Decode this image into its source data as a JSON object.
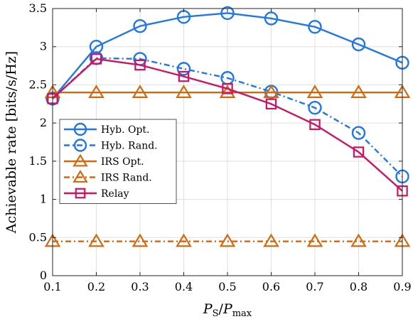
{
  "chart_data": {
    "type": "line",
    "xlabel": "P_S/P_max",
    "xlabel_main": "P",
    "xlabel_sub1": "S",
    "xlabel_slash": "/",
    "xlabel_main2": "P",
    "xlabel_sub2": "max",
    "ylabel": "Achievable rate [bits/s/Hz]",
    "xlim": [
      0.1,
      0.9
    ],
    "ylim": [
      0,
      3.5
    ],
    "xticks": [
      "0.1",
      "0.2",
      "0.3",
      "0.4",
      "0.5",
      "0.6",
      "0.7",
      "0.8",
      "0.9"
    ],
    "yticks": [
      "0",
      "0.5",
      "1",
      "1.5",
      "2",
      "2.5",
      "3",
      "3.5"
    ],
    "grid": true,
    "legend_position": "left",
    "x": [
      0.1,
      0.2,
      0.3,
      0.4,
      0.5,
      0.6,
      0.7,
      0.8,
      0.9
    ],
    "series": [
      {
        "name": "Hyb. Opt.",
        "color": "#1f77e8",
        "marker": "circle",
        "dash": "solid",
        "values": [
          2.32,
          3.0,
          3.27,
          3.39,
          3.44,
          3.37,
          3.26,
          3.03,
          2.79
        ]
      },
      {
        "name": "Hyb. Rand.",
        "color": "#1f77e8",
        "marker": "circle",
        "dash": "dashdot",
        "values": [
          2.32,
          2.85,
          2.84,
          2.71,
          2.59,
          2.41,
          2.2,
          1.87,
          1.3
        ]
      },
      {
        "name": "IRS Opt.",
        "color": "#d4680f",
        "marker": "triangle",
        "dash": "solid",
        "values": [
          2.4,
          2.4,
          2.4,
          2.4,
          2.4,
          2.4,
          2.4,
          2.4,
          2.4
        ]
      },
      {
        "name": "IRS Rand.",
        "color": "#d4680f",
        "marker": "triangle",
        "dash": "dashdot",
        "values": [
          0.45,
          0.45,
          0.45,
          0.45,
          0.45,
          0.45,
          0.45,
          0.45,
          0.45
        ]
      },
      {
        "name": "Relay",
        "color": "#cc1460",
        "marker": "square",
        "dash": "solid",
        "values": [
          2.32,
          2.84,
          2.76,
          2.61,
          2.45,
          2.25,
          1.98,
          1.62,
          1.11
        ]
      }
    ]
  }
}
